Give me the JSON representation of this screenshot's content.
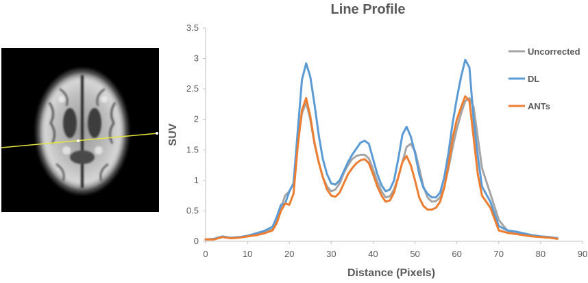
{
  "chart_data": {
    "type": "line",
    "title": "Line Profile",
    "xlabel": "Distance (Pixels)",
    "ylabel": "SUV",
    "xlim": [
      0,
      90
    ],
    "ylim": [
      0,
      3.5
    ],
    "xticks": [
      "0",
      "10",
      "20",
      "30",
      "40",
      "50",
      "60",
      "70",
      "80",
      "90"
    ],
    "yticks": [
      "0",
      "0.5",
      "1",
      "1.5",
      "2",
      "2.5",
      "3",
      "3.5"
    ],
    "grid": false,
    "legend_position": "right",
    "x": [
      0,
      2,
      4,
      6,
      8,
      10,
      12,
      14,
      16,
      17,
      18,
      19,
      20,
      21,
      22,
      23,
      24,
      25,
      26,
      27,
      28,
      29,
      30,
      31,
      32,
      33,
      34,
      35,
      36,
      37,
      38,
      39,
      40,
      41,
      42,
      43,
      44,
      45,
      46,
      47,
      48,
      49,
      50,
      51,
      52,
      53,
      54,
      55,
      56,
      57,
      58,
      59,
      60,
      61,
      62,
      63,
      64,
      65,
      66,
      68,
      70,
      72,
      74,
      76,
      78,
      80,
      82,
      84
    ],
    "series": [
      {
        "name": "Uncorrected",
        "color": "#a5a5a5",
        "values": [
          0.03,
          0.03,
          0.07,
          0.05,
          0.06,
          0.08,
          0.11,
          0.14,
          0.2,
          0.35,
          0.55,
          0.75,
          0.82,
          0.95,
          1.6,
          2.1,
          2.28,
          2.0,
          1.6,
          1.3,
          1.05,
          0.9,
          0.82,
          0.85,
          0.95,
          1.12,
          1.25,
          1.35,
          1.4,
          1.42,
          1.42,
          1.36,
          1.18,
          0.98,
          0.82,
          0.72,
          0.74,
          0.85,
          1.05,
          1.3,
          1.55,
          1.6,
          1.48,
          1.2,
          0.9,
          0.72,
          0.65,
          0.66,
          0.72,
          0.9,
          1.2,
          1.55,
          1.85,
          2.1,
          2.3,
          2.35,
          2.2,
          1.7,
          1.2,
          0.78,
          0.35,
          0.18,
          0.14,
          0.12,
          0.1,
          0.08,
          0.07,
          0.05
        ]
      },
      {
        "name": "DL",
        "color": "#5b9bd5",
        "values": [
          0.03,
          0.04,
          0.08,
          0.06,
          0.07,
          0.09,
          0.13,
          0.17,
          0.24,
          0.4,
          0.6,
          0.62,
          0.82,
          0.95,
          1.8,
          2.65,
          2.92,
          2.7,
          2.25,
          1.75,
          1.35,
          1.1,
          0.95,
          0.93,
          1.0,
          1.15,
          1.3,
          1.42,
          1.52,
          1.62,
          1.65,
          1.6,
          1.35,
          1.1,
          0.92,
          0.82,
          0.85,
          1.0,
          1.35,
          1.75,
          1.88,
          1.72,
          1.45,
          1.1,
          0.88,
          0.78,
          0.72,
          0.72,
          0.8,
          1.05,
          1.45,
          1.95,
          2.35,
          2.7,
          2.98,
          2.85,
          2.0,
          1.4,
          0.9,
          0.65,
          0.25,
          0.18,
          0.16,
          0.13,
          0.1,
          0.08,
          0.07,
          0.05
        ]
      },
      {
        "name": "ANTs",
        "color": "#ed7d31",
        "values": [
          0.03,
          0.03,
          0.07,
          0.05,
          0.06,
          0.08,
          0.1,
          0.13,
          0.18,
          0.3,
          0.5,
          0.62,
          0.6,
          0.78,
          1.55,
          2.15,
          2.35,
          2.05,
          1.62,
          1.3,
          1.05,
          0.85,
          0.75,
          0.73,
          0.8,
          0.95,
          1.1,
          1.2,
          1.28,
          1.33,
          1.35,
          1.28,
          1.1,
          0.9,
          0.75,
          0.65,
          0.67,
          0.8,
          1.05,
          1.3,
          1.4,
          1.25,
          1.0,
          0.72,
          0.58,
          0.52,
          0.52,
          0.55,
          0.65,
          0.88,
          1.25,
          1.7,
          2.0,
          2.2,
          2.38,
          2.3,
          1.7,
          1.1,
          0.75,
          0.55,
          0.18,
          0.14,
          0.12,
          0.1,
          0.08,
          0.07,
          0.06,
          0.04
        ]
      }
    ]
  },
  "brain_image": {
    "description_icon": "brain-mri-slice-icon",
    "profile_line_color": "#e6e63c"
  }
}
